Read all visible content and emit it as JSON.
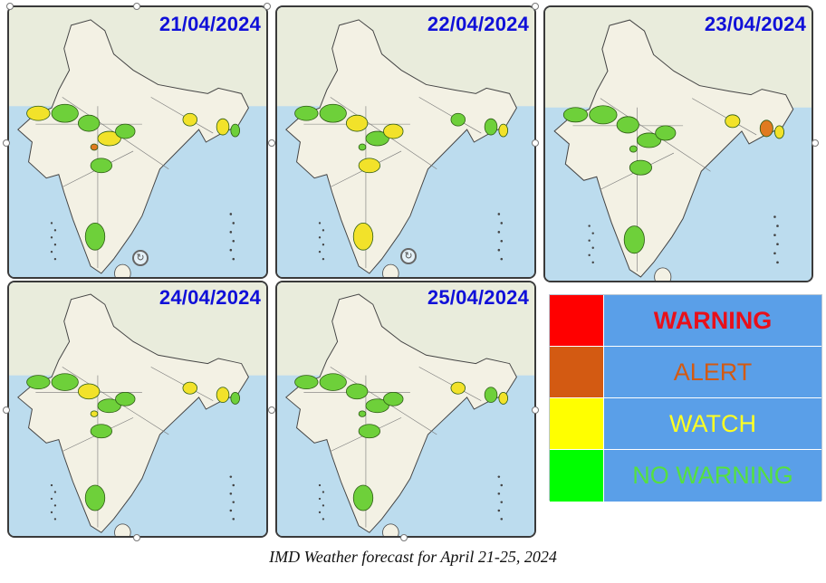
{
  "maps": [
    {
      "date": "21/04/2024",
      "zones": [
        "yellow",
        "green",
        "green",
        "yellow",
        "orange",
        "green",
        "green",
        "yellow",
        "green",
        "yellow",
        "green"
      ]
    },
    {
      "date": "22/04/2024",
      "zones": [
        "green",
        "green",
        "yellow",
        "green",
        "green",
        "yellow",
        "yellow",
        "green",
        "yellow",
        "green",
        "yellow"
      ]
    },
    {
      "date": "23/04/2024",
      "zones": [
        "green",
        "green",
        "green",
        "green",
        "green",
        "green",
        "green",
        "yellow",
        "green",
        "orange",
        "yellow"
      ]
    },
    {
      "date": "24/04/2024",
      "zones": [
        "green",
        "green",
        "yellow",
        "green",
        "yellow",
        "green",
        "green",
        "yellow",
        "green",
        "yellow",
        "green"
      ]
    },
    {
      "date": "25/04/2024",
      "zones": [
        "green",
        "green",
        "green",
        "green",
        "green",
        "green",
        "green",
        "yellow",
        "green",
        "green",
        "yellow"
      ]
    }
  ],
  "legend": [
    {
      "label": "WARNING",
      "color": "#ff0000",
      "text_color": "#e8101a"
    },
    {
      "label": "ALERT",
      "color": "#d35a12",
      "text_color": "#d35a12"
    },
    {
      "label": "WATCH",
      "color": "#ffff00",
      "text_color": "#ffff22"
    },
    {
      "label": "NO WARNING",
      "color": "#00ff00",
      "text_color": "#55e040"
    }
  ],
  "zone_colors": {
    "green": "#6ed03a",
    "yellow": "#f2e22a",
    "orange": "#e07a20"
  },
  "caption": "IMD Weather forecast for April 21-25, 2024"
}
